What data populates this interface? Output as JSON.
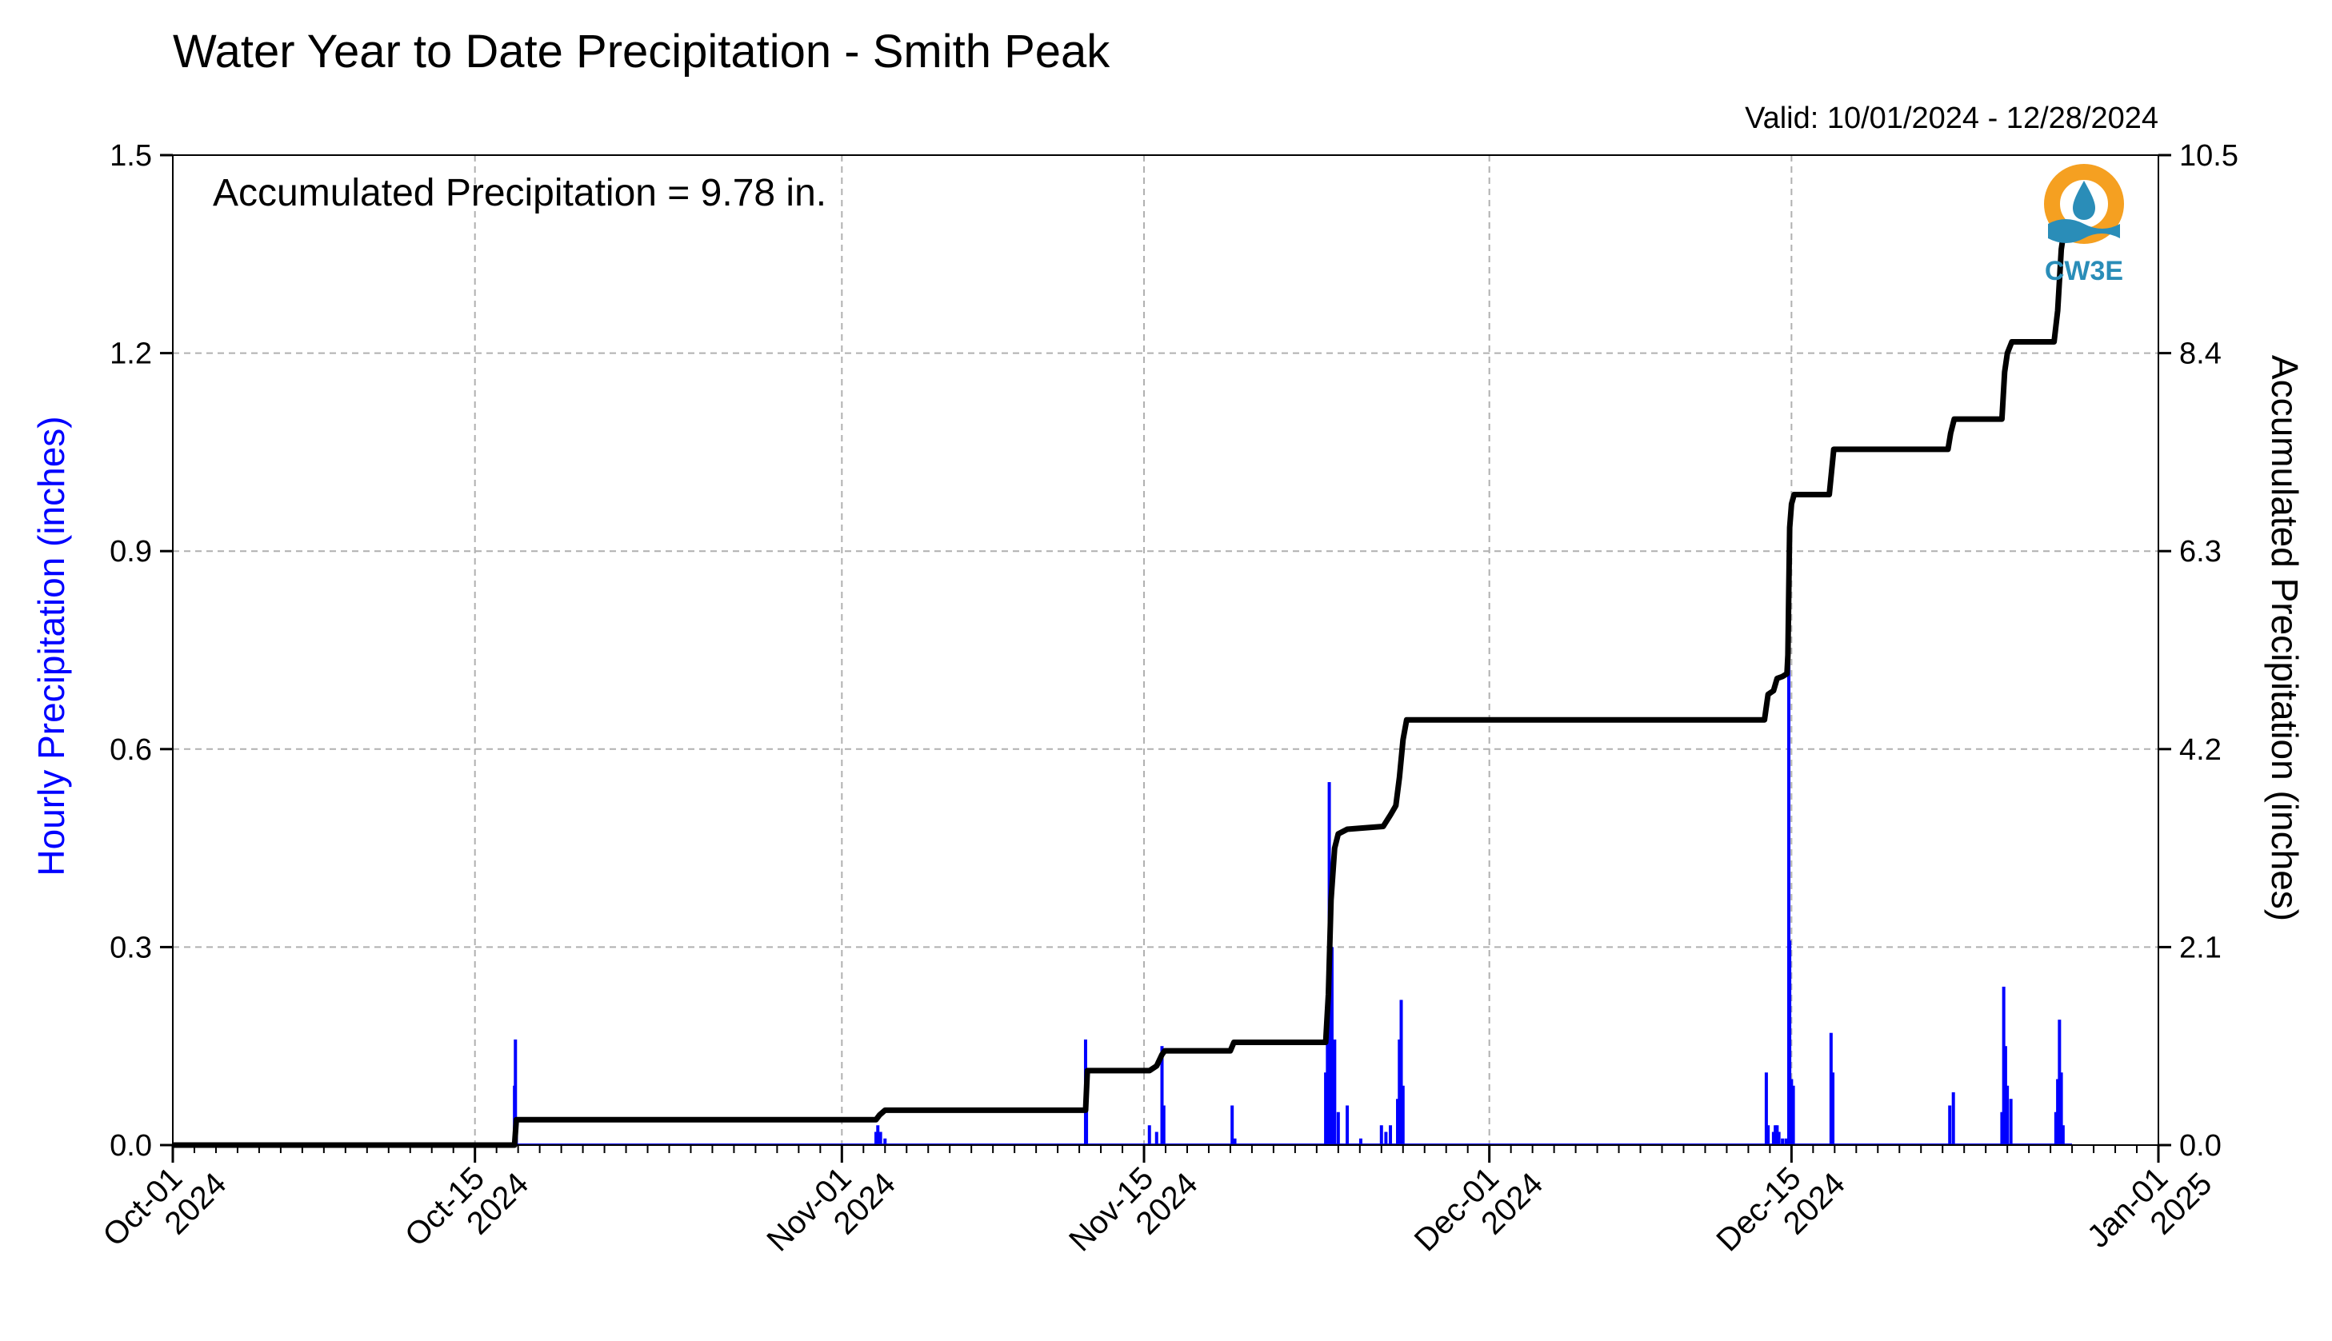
{
  "chart_data": {
    "type": "bar",
    "title": "Water Year to Date Precipitation - Smith Peak",
    "subtitle": "Valid: 10/01/2024 - 12/28/2024",
    "annotation": "Accumulated Precipitation = 9.78 in.",
    "ylabel": "Hourly Precipitation (inches)",
    "ylabel_right": "Accumulated Precipitation (inches)",
    "ylim": [
      0,
      1.5
    ],
    "ylim_right": [
      0,
      10.5
    ],
    "yticks": [
      "0.0",
      "0.3",
      "0.6",
      "0.9",
      "1.2",
      "1.5"
    ],
    "yticks_right": [
      "0.0",
      "2.1",
      "4.2",
      "6.3",
      "8.4",
      "10.5"
    ],
    "xlim": [
      "2024-10-01",
      "2025-01-01"
    ],
    "xticks": [
      {
        "date": "2024-10-01",
        "line1": "Oct-01",
        "line2": "2024"
      },
      {
        "date": "2024-10-15",
        "line1": "Oct-15",
        "line2": "2024"
      },
      {
        "date": "2024-11-01",
        "line1": "Nov-01",
        "line2": "2024"
      },
      {
        "date": "2024-11-15",
        "line1": "Nov-15",
        "line2": "2024"
      },
      {
        "date": "2024-12-01",
        "line1": "Dec-01",
        "line2": "2024"
      },
      {
        "date": "2024-12-15",
        "line1": "Dec-15",
        "line2": "2024"
      },
      {
        "date": "2025-01-01",
        "line1": "Jan-01",
        "line2": "2025"
      }
    ],
    "grid": true,
    "colors": {
      "hourly": "#0000ff",
      "accumulated": "#000000",
      "grid": "#b0b0b0"
    },
    "series": [
      {
        "name": "Hourly Precipitation (inches)",
        "type": "bar",
        "axis": "left",
        "points": [
          [
            "2024-10-16T20:00",
            0.09
          ],
          [
            "2024-10-16T21:00",
            0.16
          ],
          [
            "2024-10-16T22:00",
            0.04
          ],
          [
            "2024-11-02T14:00",
            0.02
          ],
          [
            "2024-11-02T16:00",
            0.03
          ],
          [
            "2024-11-02T19:00",
            0.02
          ],
          [
            "2024-11-03T00:00",
            0.01
          ],
          [
            "2024-11-12T07:00",
            0.16
          ],
          [
            "2024-11-12T08:00",
            0.06
          ],
          [
            "2024-11-15T06:00",
            0.03
          ],
          [
            "2024-11-15T14:00",
            0.02
          ],
          [
            "2024-11-15T20:00",
            0.15
          ],
          [
            "2024-11-15T22:00",
            0.06
          ],
          [
            "2024-11-19T02:00",
            0.06
          ],
          [
            "2024-11-19T05:00",
            0.01
          ],
          [
            "2024-11-23T10:00",
            0.11
          ],
          [
            "2024-11-23T12:00",
            0.18
          ],
          [
            "2024-11-23T14:00",
            0.55
          ],
          [
            "2024-11-23T17:00",
            0.3
          ],
          [
            "2024-11-23T20:00",
            0.16
          ],
          [
            "2024-11-24T00:00",
            0.05
          ],
          [
            "2024-11-24T10:00",
            0.06
          ],
          [
            "2024-11-25T01:00",
            0.01
          ],
          [
            "2024-11-26T00:00",
            0.03
          ],
          [
            "2024-11-26T05:00",
            0.02
          ],
          [
            "2024-11-26T10:00",
            0.03
          ],
          [
            "2024-11-26T18:00",
            0.07
          ],
          [
            "2024-11-26T20:00",
            0.16
          ],
          [
            "2024-11-26T22:00",
            0.22
          ],
          [
            "2024-11-27T00:00",
            0.09
          ],
          [
            "2024-12-13T20:00",
            0.11
          ],
          [
            "2024-12-13T22:00",
            0.03
          ],
          [
            "2024-12-14T04:00",
            0.02
          ],
          [
            "2024-12-14T06:00",
            0.03
          ],
          [
            "2024-12-14T08:00",
            0.03
          ],
          [
            "2024-12-14T10:00",
            0.02
          ],
          [
            "2024-12-14T14:00",
            0.01
          ],
          [
            "2024-12-14T18:00",
            0.01
          ],
          [
            "2024-12-14T21:00",
            0.92
          ],
          [
            "2024-12-14T22:00",
            0.31
          ],
          [
            "2024-12-15T00:00",
            0.1
          ],
          [
            "2024-12-15T02:00",
            0.09
          ],
          [
            "2024-12-16T20:00",
            0.17
          ],
          [
            "2024-12-16T22:00",
            0.11
          ],
          [
            "2024-12-22T08:00",
            0.06
          ],
          [
            "2024-12-22T12:00",
            0.08
          ],
          [
            "2024-12-24T18:00",
            0.05
          ],
          [
            "2024-12-24T20:00",
            0.24
          ],
          [
            "2024-12-24T22:00",
            0.15
          ],
          [
            "2024-12-25T00:00",
            0.09
          ],
          [
            "2024-12-25T04:00",
            0.07
          ],
          [
            "2024-12-27T06:00",
            0.05
          ],
          [
            "2024-12-27T08:00",
            0.1
          ],
          [
            "2024-12-27T10:00",
            0.19
          ],
          [
            "2024-12-27T12:00",
            0.11
          ],
          [
            "2024-12-27T14:00",
            0.03
          ]
        ]
      },
      {
        "name": "Accumulated Precipitation (inches)",
        "type": "line",
        "axis": "right",
        "points": [
          [
            "2024-10-01T00:00",
            0.0
          ],
          [
            "2024-10-16T20:00",
            0.0
          ],
          [
            "2024-10-16T22:00",
            0.27
          ],
          [
            "2024-11-02T14:00",
            0.27
          ],
          [
            "2024-11-02T18:00",
            0.32
          ],
          [
            "2024-11-03T00:00",
            0.37
          ],
          [
            "2024-11-12T07:00",
            0.37
          ],
          [
            "2024-11-12T09:00",
            0.79
          ],
          [
            "2024-11-15T06:00",
            0.79
          ],
          [
            "2024-11-15T14:00",
            0.84
          ],
          [
            "2024-11-15T20:00",
            0.96
          ],
          [
            "2024-11-15T23:00",
            1.0
          ],
          [
            "2024-11-19T00:00",
            1.0
          ],
          [
            "2024-11-19T04:00",
            1.09
          ],
          [
            "2024-11-23T10:00",
            1.09
          ],
          [
            "2024-11-23T13:00",
            1.6
          ],
          [
            "2024-11-23T16:00",
            2.6
          ],
          [
            "2024-11-23T20:00",
            3.15
          ],
          [
            "2024-11-24T00:00",
            3.3
          ],
          [
            "2024-11-24T10:00",
            3.35
          ],
          [
            "2024-11-25T00:00",
            3.36
          ],
          [
            "2024-11-26T02:00",
            3.38
          ],
          [
            "2024-11-26T10:00",
            3.5
          ],
          [
            "2024-11-26T16:00",
            3.6
          ],
          [
            "2024-11-26T20:00",
            3.9
          ],
          [
            "2024-11-27T00:00",
            4.3
          ],
          [
            "2024-11-27T04:00",
            4.51
          ],
          [
            "2024-12-13T18:00",
            4.51
          ],
          [
            "2024-12-13T22:00",
            4.78
          ],
          [
            "2024-12-14T04:00",
            4.82
          ],
          [
            "2024-12-14T08:00",
            4.95
          ],
          [
            "2024-12-14T14:00",
            4.97
          ],
          [
            "2024-12-14T19:00",
            5.0
          ],
          [
            "2024-12-14T20:00",
            5.2
          ],
          [
            "2024-12-14T21:00",
            5.9
          ],
          [
            "2024-12-14T22:00",
            6.55
          ],
          [
            "2024-12-15T00:00",
            6.8
          ],
          [
            "2024-12-15T03:00",
            6.9
          ],
          [
            "2024-12-16T18:00",
            6.9
          ],
          [
            "2024-12-16T23:00",
            7.38
          ],
          [
            "2024-12-22T06:00",
            7.38
          ],
          [
            "2024-12-22T09:00",
            7.55
          ],
          [
            "2024-12-22T13:00",
            7.7
          ],
          [
            "2024-12-24T18:00",
            7.7
          ],
          [
            "2024-12-24T21:00",
            8.2
          ],
          [
            "2024-12-25T00:00",
            8.4
          ],
          [
            "2024-12-25T05:00",
            8.52
          ],
          [
            "2024-12-27T04:00",
            8.52
          ],
          [
            "2024-12-27T08:00",
            8.85
          ],
          [
            "2024-12-27T12:00",
            9.5
          ],
          [
            "2024-12-27T15:00",
            9.7
          ],
          [
            "2024-12-27T20:00",
            9.78
          ],
          [
            "2024-12-28T00:00",
            9.78
          ]
        ]
      }
    ]
  },
  "logo": {
    "text": "CW3E",
    "ring_color": "#f5a021",
    "wave_color": "#2a8db8"
  }
}
